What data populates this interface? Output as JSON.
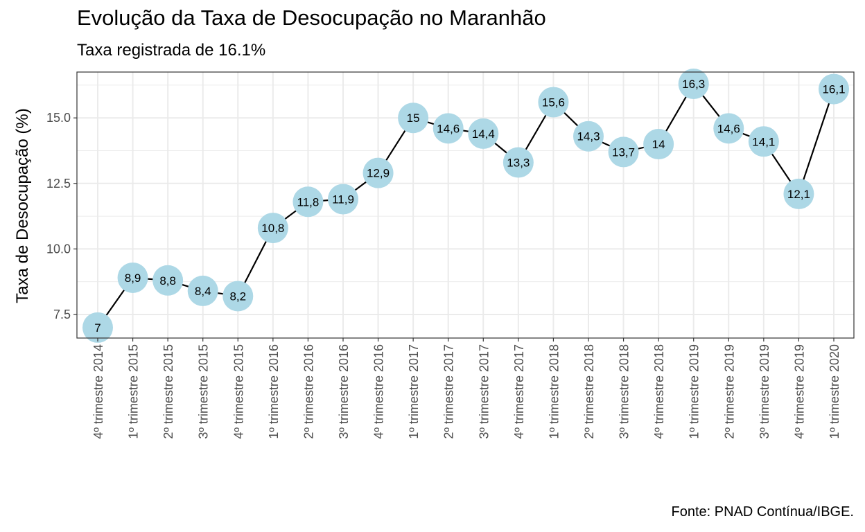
{
  "header": {
    "title": "Evolução da Taxa de Desocupação no Maranhão",
    "subtitle": "Taxa registrada de 16.1%"
  },
  "footer": {
    "caption": "Fonte: PNAD Contínua/IBGE."
  },
  "colors": {
    "point_fill": "#ADD8E6",
    "line": "#000000",
    "grid": "#EBEBEB",
    "panel_border": "#333333",
    "tick_text": "#4D4D4D"
  },
  "chart_data": {
    "type": "line",
    "title": "Evolução da Taxa de Desocupação no Maranhão",
    "subtitle": "Taxa registrada de 16.1%",
    "xlabel": "",
    "ylabel": "Taxa de Desocupação (%)",
    "ylim": [
      6.6,
      16.75
    ],
    "yticks": [
      7.5,
      10.0,
      12.5,
      15.0
    ],
    "ytick_labels": [
      "7.5",
      "10.0",
      "12.5",
      "15.0"
    ],
    "grid": true,
    "legend": "none",
    "categories": [
      "4º trimestre 2014",
      "1º trimestre 2015",
      "2º trimestre 2015",
      "3º trimestre 2015",
      "4º trimestre 2015",
      "1º trimestre 2016",
      "2º trimestre 2016",
      "3º trimestre 2016",
      "4º trimestre 2016",
      "1º trimestre 2017",
      "2º trimestre 2017",
      "3º trimestre 2017",
      "4º trimestre 2017",
      "1º trimestre 2018",
      "2º trimestre 2018",
      "3º trimestre 2018",
      "4º trimestre 2018",
      "1º trimestre 2019",
      "2º trimestre 2019",
      "3º trimestre 2019",
      "4º trimestre 2019",
      "1º trimestre 2020"
    ],
    "values": [
      7,
      8.9,
      8.8,
      8.4,
      8.2,
      10.8,
      11.8,
      11.9,
      12.9,
      15,
      14.6,
      14.4,
      13.3,
      15.6,
      14.3,
      13.7,
      14,
      16.3,
      14.6,
      14.1,
      12.1,
      16.1
    ],
    "data_labels": [
      "7",
      "8,9",
      "8,8",
      "8,4",
      "8,2",
      "10,8",
      "11,8",
      "11,9",
      "12,9",
      "15",
      "14,6",
      "14,4",
      "13,3",
      "15,6",
      "14,3",
      "13,7",
      "14",
      "16,3",
      "14,6",
      "14,1",
      "12,1",
      "16,1"
    ]
  }
}
